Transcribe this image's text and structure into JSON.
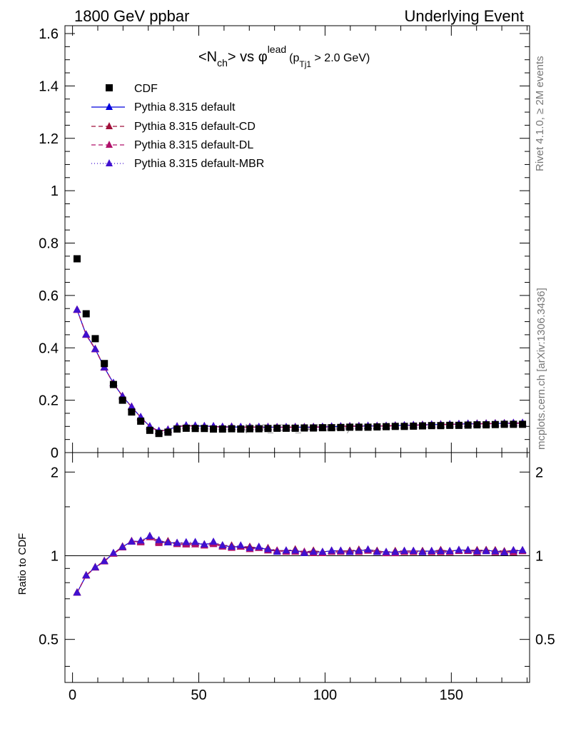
{
  "header": {
    "left": "1800 GeV ppbar",
    "right": "Underlying Event"
  },
  "side_labels": {
    "top": "Rivet 4.1.0, ≥ 2M events",
    "bottom": "mcplots.cern.ch [arXiv:1306.3436]"
  },
  "title": {
    "n": "<N",
    "n_sub": "ch",
    "vs": "> vs φ",
    "lead_sup": "lead",
    "p_open": "(p",
    "p_sub": "Tj1",
    "cut": " > 2.0 GeV)"
  },
  "watermark": "(CDF_2001_S4751469)",
  "ratio_ylabel": "Ratio to CDF",
  "chart_data": {
    "type": "scatter",
    "x": [
      1.8,
      5.4,
      9.0,
      12.6,
      16.2,
      19.8,
      23.4,
      27.0,
      30.6,
      34.2,
      37.8,
      41.4,
      45.0,
      48.6,
      52.2,
      55.8,
      59.4,
      63.0,
      66.6,
      70.2,
      73.8,
      77.4,
      81.0,
      84.6,
      88.2,
      91.8,
      95.4,
      99.0,
      102.6,
      106.2,
      109.8,
      113.4,
      117.0,
      120.6,
      124.2,
      127.8,
      131.4,
      135.0,
      138.6,
      142.2,
      145.8,
      149.4,
      153.0,
      156.6,
      160.2,
      163.8,
      167.4,
      171.0,
      174.6,
      178.2
    ],
    "xlim": [
      -3,
      181
    ],
    "xticks": [
      0,
      50,
      100,
      150
    ],
    "main": {
      "ylim": [
        0,
        1.63
      ],
      "yticks": [
        0,
        0.2,
        0.4,
        0.6,
        0.8,
        1,
        1.2,
        1.4,
        1.6
      ],
      "ytick_labels": [
        "0",
        "0.2",
        "0.4",
        "0.6",
        "0.8",
        "1",
        "1.2",
        "1.4",
        "1.6"
      ]
    },
    "ratio": {
      "ylim": [
        0.35,
        2.35
      ],
      "yticks": [
        0.5,
        1,
        2
      ],
      "ytick_labels": [
        "0.5",
        "1",
        "2"
      ],
      "reference_line": 1
    },
    "legend": [
      {
        "label": "CDF",
        "style": "marker-square",
        "color": "#000000"
      },
      {
        "label": "Pythia 8.315 default",
        "style": "solid",
        "color": "#0000dd"
      },
      {
        "label": "Pythia 8.315 default-CD",
        "style": "dashed",
        "color": "#a0103a"
      },
      {
        "label": "Pythia 8.315 default-DL",
        "style": "dashed",
        "color": "#b0106a"
      },
      {
        "label": "Pythia 8.315 default-MBR",
        "style": "dotted",
        "color": "#4010d0"
      }
    ],
    "data": {
      "name": "CDF",
      "values": [
        0.74,
        0.53,
        0.435,
        0.34,
        0.26,
        0.2,
        0.155,
        0.12,
        0.085,
        0.073,
        0.078,
        0.09,
        0.093,
        0.092,
        0.092,
        0.09,
        0.09,
        0.091,
        0.09,
        0.091,
        0.091,
        0.092,
        0.093,
        0.093,
        0.093,
        0.094,
        0.094,
        0.095,
        0.095,
        0.096,
        0.097,
        0.097,
        0.097,
        0.098,
        0.099,
        0.1,
        0.1,
        0.101,
        0.102,
        0.103,
        0.103,
        0.104,
        0.104,
        0.105,
        0.106,
        0.106,
        0.107,
        0.108,
        0.108,
        0.108
      ]
    },
    "series": [
      {
        "name": "Pythia 8.315 default",
        "color": "#0000dd",
        "dash": "",
        "values": [
          0.545,
          0.45,
          0.395,
          0.325,
          0.265,
          0.215,
          0.175,
          0.135,
          0.1,
          0.082,
          0.087,
          0.1,
          0.103,
          0.102,
          0.101,
          0.1,
          0.098,
          0.098,
          0.097,
          0.097,
          0.097,
          0.097,
          0.097,
          0.097,
          0.097,
          0.097,
          0.097,
          0.098,
          0.099,
          0.1,
          0.101,
          0.101,
          0.102,
          0.102,
          0.102,
          0.103,
          0.104,
          0.105,
          0.106,
          0.107,
          0.107,
          0.108,
          0.109,
          0.11,
          0.11,
          0.111,
          0.111,
          0.112,
          0.112,
          0.113
        ]
      },
      {
        "name": "Pythia 8.315 default-CD",
        "color": "#a0103a",
        "dash": "6,4",
        "values": [
          0.546,
          0.451,
          0.396,
          0.326,
          0.265,
          0.216,
          0.174,
          0.135,
          0.1,
          0.082,
          0.088,
          0.1,
          0.103,
          0.102,
          0.101,
          0.1,
          0.098,
          0.099,
          0.097,
          0.098,
          0.097,
          0.098,
          0.097,
          0.097,
          0.098,
          0.097,
          0.098,
          0.098,
          0.099,
          0.1,
          0.101,
          0.102,
          0.102,
          0.102,
          0.102,
          0.104,
          0.104,
          0.105,
          0.106,
          0.107,
          0.108,
          0.108,
          0.109,
          0.11,
          0.111,
          0.111,
          0.112,
          0.112,
          0.113,
          0.113
        ]
      },
      {
        "name": "Pythia 8.315 default-DL",
        "color": "#b0106a",
        "dash": "6,4",
        "values": [
          0.544,
          0.449,
          0.394,
          0.324,
          0.264,
          0.214,
          0.175,
          0.134,
          0.099,
          0.081,
          0.087,
          0.099,
          0.102,
          0.101,
          0.1,
          0.099,
          0.097,
          0.097,
          0.097,
          0.096,
          0.097,
          0.096,
          0.097,
          0.096,
          0.096,
          0.097,
          0.096,
          0.097,
          0.098,
          0.099,
          0.1,
          0.1,
          0.101,
          0.101,
          0.101,
          0.102,
          0.103,
          0.104,
          0.105,
          0.106,
          0.106,
          0.107,
          0.108,
          0.109,
          0.109,
          0.11,
          0.11,
          0.111,
          0.111,
          0.112
        ]
      },
      {
        "name": "Pythia 8.315 default-MBR",
        "color": "#4010d0",
        "dash": "1,3",
        "values": [
          0.545,
          0.45,
          0.395,
          0.325,
          0.266,
          0.215,
          0.174,
          0.136,
          0.1,
          0.083,
          0.087,
          0.1,
          0.104,
          0.103,
          0.101,
          0.101,
          0.098,
          0.098,
          0.098,
          0.097,
          0.098,
          0.097,
          0.096,
          0.097,
          0.097,
          0.096,
          0.097,
          0.098,
          0.099,
          0.1,
          0.1,
          0.101,
          0.102,
          0.101,
          0.102,
          0.103,
          0.104,
          0.105,
          0.105,
          0.107,
          0.107,
          0.108,
          0.109,
          0.11,
          0.11,
          0.11,
          0.111,
          0.111,
          0.113,
          0.113
        ]
      }
    ]
  }
}
